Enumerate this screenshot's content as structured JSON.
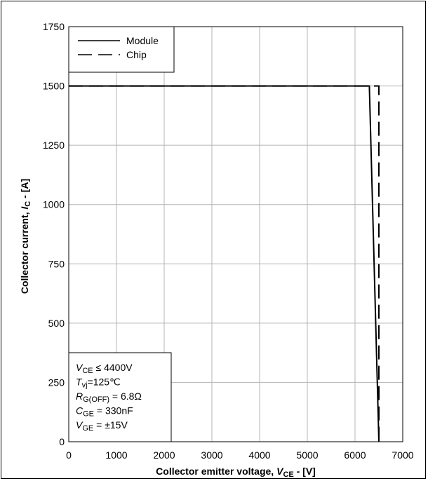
{
  "chart_data": {
    "type": "line",
    "xlabel": {
      "main": "Collector emitter voltage, ",
      "var": "V",
      "sub": "CE",
      "unit": " - [V]"
    },
    "ylabel": {
      "main": "Collector current, ",
      "var": "I",
      "sub": "C",
      "unit": " - [A]"
    },
    "xlim": [
      0,
      7000
    ],
    "ylim": [
      0,
      1750
    ],
    "x_ticks": [
      0,
      1000,
      2000,
      3000,
      4000,
      5000,
      6000,
      7000
    ],
    "y_ticks": [
      0,
      250,
      500,
      750,
      1000,
      1250,
      1500,
      1750
    ],
    "grid": true,
    "legend_position": "top-left",
    "series": [
      {
        "name": "Module",
        "style": "solid",
        "points": [
          [
            0,
            1500
          ],
          [
            6300,
            1500
          ],
          [
            6500,
            0
          ]
        ]
      },
      {
        "name": "Chip",
        "style": "dashed",
        "points": [
          [
            0,
            1500
          ],
          [
            6500,
            1500
          ],
          [
            6500,
            0
          ]
        ]
      }
    ],
    "conditions": [
      {
        "var": "V",
        "sub": "CE",
        "text": " ≤ 4400V"
      },
      {
        "var": "T",
        "sub": "vj",
        "text": "=125℃"
      },
      {
        "var": "R",
        "sub": "G(OFF)",
        "text": " = 6.8Ω"
      },
      {
        "var": "C",
        "sub": "GE",
        "text": " = 330nF"
      },
      {
        "var": "V",
        "sub": "GE",
        "text": " = ±15V"
      }
    ]
  }
}
